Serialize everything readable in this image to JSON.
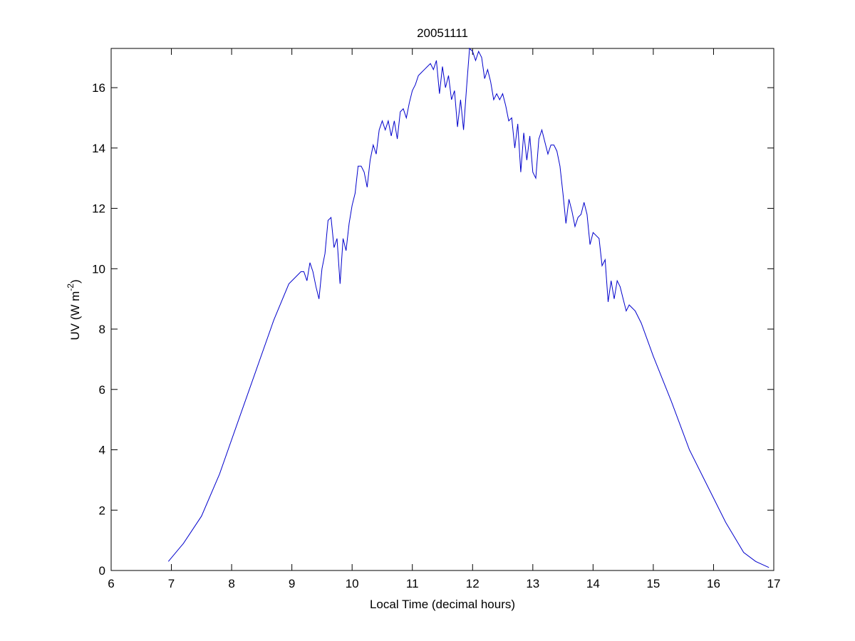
{
  "chart_data": {
    "type": "line",
    "title": "20051111",
    "xlabel": "Local Time (decimal hours)",
    "ylabel": {
      "prefix": "UV (W m",
      "superscript": "-2",
      "suffix": ")"
    },
    "xlim": [
      6,
      17
    ],
    "ylim": [
      0,
      17.3
    ],
    "xticks": [
      6,
      7,
      8,
      9,
      10,
      11,
      12,
      13,
      14,
      15,
      16,
      17
    ],
    "yticks": [
      0,
      2,
      4,
      6,
      8,
      10,
      12,
      14,
      16
    ],
    "grid": false,
    "line_color": "#0000cc",
    "series": [
      {
        "name": "",
        "x": [
          6.95,
          7.2,
          7.5,
          7.8,
          8.1,
          8.4,
          8.7,
          8.95,
          9.05,
          9.15,
          9.2,
          9.25,
          9.3,
          9.35,
          9.4,
          9.45,
          9.5,
          9.55,
          9.6,
          9.65,
          9.7,
          9.75,
          9.8,
          9.85,
          9.9,
          9.95,
          10.0,
          10.05,
          10.1,
          10.15,
          10.2,
          10.25,
          10.3,
          10.35,
          10.4,
          10.45,
          10.5,
          10.55,
          10.6,
          10.65,
          10.7,
          10.75,
          10.8,
          10.85,
          10.9,
          10.95,
          11.0,
          11.05,
          11.1,
          11.15,
          11.2,
          11.25,
          11.3,
          11.35,
          11.4,
          11.45,
          11.5,
          11.55,
          11.6,
          11.65,
          11.7,
          11.75,
          11.8,
          11.85,
          11.9,
          11.95,
          12.0,
          12.05,
          12.1,
          12.15,
          12.2,
          12.25,
          12.3,
          12.35,
          12.4,
          12.45,
          12.5,
          12.55,
          12.6,
          12.65,
          12.7,
          12.75,
          12.8,
          12.85,
          12.9,
          12.95,
          13.0,
          13.05,
          13.1,
          13.15,
          13.2,
          13.25,
          13.3,
          13.35,
          13.4,
          13.45,
          13.5,
          13.55,
          13.6,
          13.65,
          13.7,
          13.75,
          13.8,
          13.85,
          13.9,
          13.95,
          14.0,
          14.05,
          14.1,
          14.15,
          14.2,
          14.25,
          14.3,
          14.35,
          14.4,
          14.45,
          14.5,
          14.55,
          14.6,
          14.65,
          14.7,
          14.8,
          15.0,
          15.3,
          15.6,
          15.9,
          16.2,
          16.5,
          16.7,
          16.92
        ],
        "y": [
          0.3,
          0.9,
          1.8,
          3.2,
          4.9,
          6.6,
          8.3,
          9.5,
          9.7,
          9.9,
          9.9,
          9.6,
          10.2,
          9.9,
          9.4,
          9.0,
          10.0,
          10.5,
          11.6,
          11.7,
          10.7,
          11.0,
          9.5,
          11.0,
          10.6,
          11.5,
          12.1,
          12.5,
          13.4,
          13.4,
          13.2,
          12.7,
          13.6,
          14.1,
          13.8,
          14.6,
          14.9,
          14.6,
          14.9,
          14.4,
          14.9,
          14.3,
          15.2,
          15.3,
          15.0,
          15.5,
          15.9,
          16.1,
          16.4,
          16.5,
          16.6,
          16.7,
          16.8,
          16.6,
          16.9,
          15.8,
          16.7,
          16.0,
          16.4,
          15.6,
          15.9,
          14.7,
          15.6,
          14.6,
          16.0,
          17.3,
          17.2,
          16.9,
          17.2,
          17.0,
          16.3,
          16.6,
          16.2,
          15.6,
          15.8,
          15.6,
          15.8,
          15.4,
          14.9,
          15.0,
          14.0,
          14.8,
          13.2,
          14.5,
          13.6,
          14.4,
          13.2,
          13.0,
          14.3,
          14.6,
          14.2,
          13.8,
          14.1,
          14.1,
          13.9,
          13.4,
          12.5,
          11.5,
          12.3,
          11.9,
          11.4,
          11.7,
          11.8,
          12.2,
          11.8,
          10.8,
          11.2,
          11.1,
          11.0,
          10.1,
          10.3,
          8.9,
          9.6,
          9.0,
          9.6,
          9.4,
          9.0,
          8.6,
          8.8,
          8.7,
          8.6,
          8.2,
          7.1,
          5.6,
          4.0,
          2.8,
          1.6,
          0.6,
          0.3,
          0.1
        ]
      }
    ]
  }
}
